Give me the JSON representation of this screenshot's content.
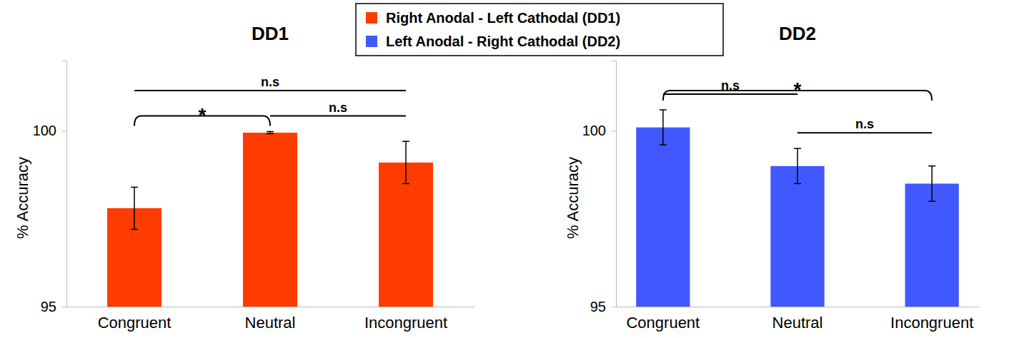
{
  "chart_data": [
    {
      "type": "bar",
      "title": "DD1",
      "y_label": "% Accuracy",
      "categories": [
        "Congruent",
        "Neutral",
        "Incongruent"
      ],
      "series": [
        {
          "name": "Right Anodal - Left Cathodal (DD1)",
          "color": "#ff3c00",
          "values": [
            97.8,
            99.95,
            99.1
          ],
          "errors": [
            0.6,
            0.03,
            0.6
          ]
        }
      ],
      "ylim": [
        95,
        102
      ],
      "yticks": [
        95,
        100
      ],
      "grid": false,
      "comparisons": [
        {
          "pair": [
            "Congruent",
            "Neutral"
          ],
          "label": "*"
        },
        {
          "pair": [
            "Neutral",
            "Incongruent"
          ],
          "label": "n.s"
        },
        {
          "pair": [
            "Congruent",
            "Incongruent"
          ],
          "label": "n.s"
        }
      ]
    },
    {
      "type": "bar",
      "title": "DD2",
      "y_label": "% Accuracy",
      "categories": [
        "Congruent",
        "Neutral",
        "Incongruent"
      ],
      "series": [
        {
          "name": "Left Anodal - Right Cathodal (DD2)",
          "color": "#4258ff",
          "values": [
            100.1,
            99.0,
            98.5
          ],
          "errors": [
            0.5,
            0.5,
            0.5
          ]
        }
      ],
      "ylim": [
        95,
        102
      ],
      "yticks": [
        95,
        100
      ],
      "grid": false,
      "comparisons": [
        {
          "pair": [
            "Congruent",
            "Neutral"
          ],
          "label": "n.s"
        },
        {
          "pair": [
            "Neutral",
            "Incongruent"
          ],
          "label": "n.s"
        },
        {
          "pair": [
            "Congruent",
            "Incongruent"
          ],
          "label": "*"
        }
      ]
    }
  ]
}
